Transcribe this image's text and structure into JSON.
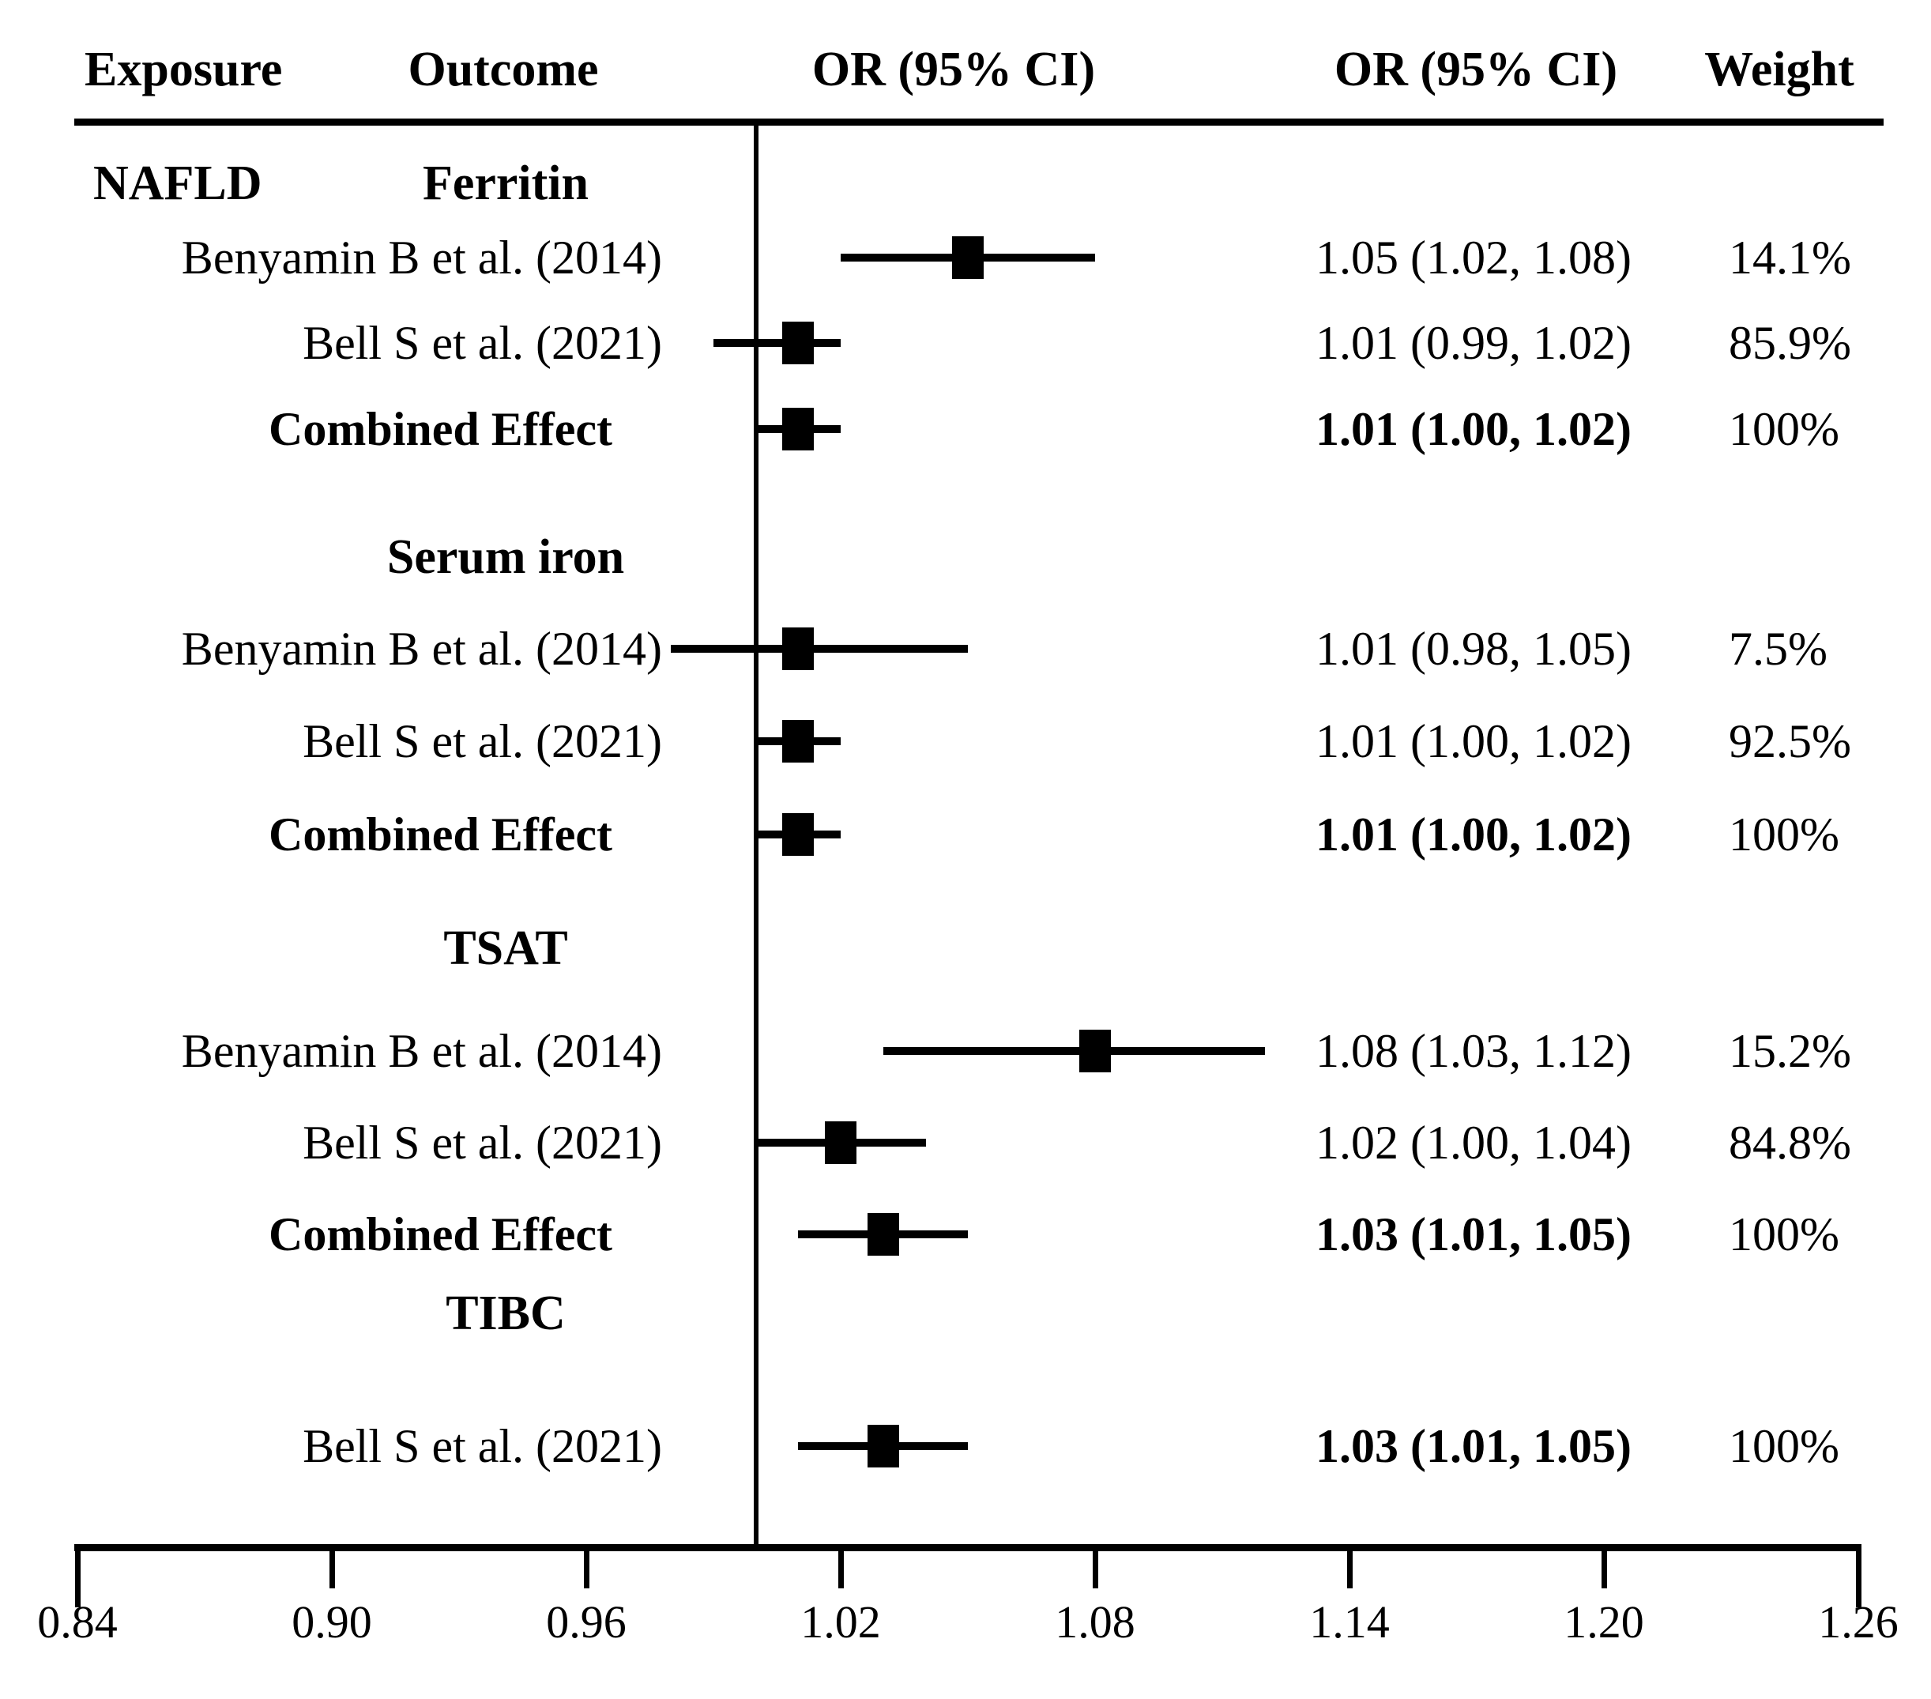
{
  "header": {
    "exposure": "Exposure",
    "outcome": "Outcome",
    "or_plot": "OR (95% CI)",
    "or_column": "OR (95% CI)",
    "weight": "Weight"
  },
  "chart_data": {
    "type": "forest",
    "exposure": "NAFLD",
    "x_axis": {
      "ticks": [
        0.84,
        0.9,
        0.96,
        1.02,
        1.08,
        1.14,
        1.2,
        1.26
      ],
      "tick_labels": [
        "0.84",
        "0.90",
        "0.96",
        "1.02",
        "1.08",
        "1.14",
        "1.20",
        "1.26"
      ],
      "range": [
        0.84,
        1.26
      ],
      "reference_line": 1.0,
      "grid": false
    },
    "sections": [
      {
        "outcome": "Ferritin",
        "rows": [
          {
            "study": "Benyamin B et al. (2014)",
            "or": 1.05,
            "ci_low": 1.02,
            "ci_high": 1.08,
            "or_ci_text": "1.05 (1.02, 1.08)",
            "weight": "14.1%",
            "bold_label": false,
            "bold_or": false
          },
          {
            "study": "Bell S et al. (2021)",
            "or": 1.01,
            "ci_low": 0.99,
            "ci_high": 1.02,
            "or_ci_text": "1.01 (0.99, 1.02)",
            "weight": "85.9%",
            "bold_label": false,
            "bold_or": false
          },
          {
            "study": "Combined Effect",
            "or": 1.01,
            "ci_low": 1.0,
            "ci_high": 1.02,
            "or_ci_text": "1.01 (1.00, 1.02)",
            "weight": "100%",
            "bold_label": true,
            "bold_or": true
          }
        ]
      },
      {
        "outcome": "Serum iron",
        "rows": [
          {
            "study": "Benyamin B et al. (2014)",
            "or": 1.01,
            "ci_low": 0.98,
            "ci_high": 1.05,
            "or_ci_text": "1.01 (0.98, 1.05)",
            "weight": "7.5%",
            "bold_label": false,
            "bold_or": false
          },
          {
            "study": "Bell S et al. (2021)",
            "or": 1.01,
            "ci_low": 1.0,
            "ci_high": 1.02,
            "or_ci_text": "1.01 (1.00, 1.02)",
            "weight": "92.5%",
            "bold_label": false,
            "bold_or": false
          },
          {
            "study": "Combined Effect",
            "or": 1.01,
            "ci_low": 1.0,
            "ci_high": 1.02,
            "or_ci_text": "1.01 (1.00, 1.02)",
            "weight": "100%",
            "bold_label": true,
            "bold_or": true
          }
        ]
      },
      {
        "outcome": "TSAT",
        "rows": [
          {
            "study": "Benyamin B et al. (2014)",
            "or": 1.08,
            "ci_low": 1.03,
            "ci_high": 1.12,
            "or_ci_text": "1.08 (1.03, 1.12)",
            "weight": "15.2%",
            "bold_label": false,
            "bold_or": false
          },
          {
            "study": "Bell S et al. (2021)",
            "or": 1.02,
            "ci_low": 1.0,
            "ci_high": 1.04,
            "or_ci_text": "1.02 (1.00, 1.04)",
            "weight": "84.8%",
            "bold_label": false,
            "bold_or": false
          },
          {
            "study": "Combined Effect",
            "or": 1.03,
            "ci_low": 1.01,
            "ci_high": 1.05,
            "or_ci_text": "1.03 (1.01, 1.05)",
            "weight": "100%",
            "bold_label": true,
            "bold_or": true
          }
        ]
      },
      {
        "outcome": "TIBC",
        "rows": [
          {
            "study": "Bell S et al. (2021)",
            "or": 1.03,
            "ci_low": 1.01,
            "ci_high": 1.05,
            "or_ci_text": "1.03 (1.01, 1.05)",
            "weight": "100%",
            "bold_label": false,
            "bold_or": true
          }
        ]
      }
    ],
    "colors": {
      "ink": "#000000",
      "background": "#ffffff"
    }
  }
}
